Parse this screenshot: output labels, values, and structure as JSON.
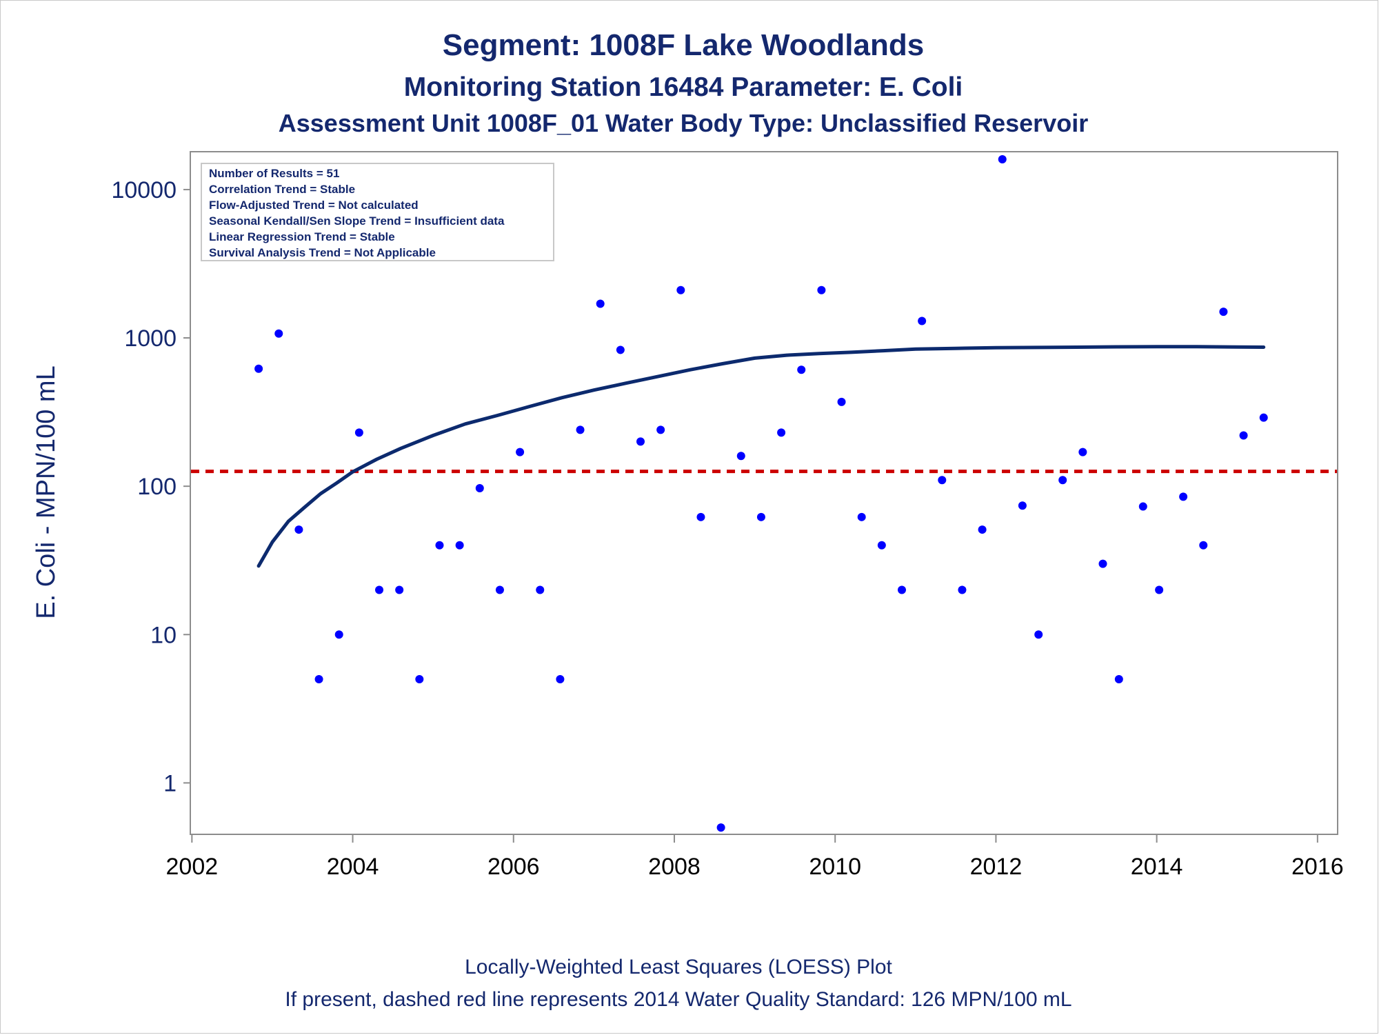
{
  "chart_data": {
    "type": "scatter",
    "title": "Segment: 1008F  Lake Woodlands",
    "subtitle": "Monitoring Station 16484 Parameter: E. Coli",
    "subtitle2": "Assessment Unit 1008F_01   Water Body Type: Unclassified Reservoir",
    "xlabel": "",
    "ylabel": "E. Coli - MPN/100 mL",
    "footnotes": [
      "Locally-Weighted Least Squares (LOESS) Plot",
      "If present, dashed red line represents 2014 Water Quality Standard: 126 MPN/100 mL"
    ],
    "stats_box": [
      "Number of Results = 51",
      "Correlation Trend = Stable",
      "Flow-Adjusted Trend = Not calculated",
      "Seasonal Kendall/Sen Slope Trend = Insufficient data",
      "Linear Regression Trend = Stable",
      "Survival Analysis Trend = Not Applicable"
    ],
    "x_ticks": [
      2002,
      2004,
      2006,
      2008,
      2010,
      2012,
      2014,
      2016
    ],
    "y_ticks": [
      1,
      10,
      100,
      1000,
      10000
    ],
    "y_tick_labels": [
      "1",
      "10",
      "100",
      "1000",
      "10000"
    ],
    "xlim": [
      2001.98,
      2016.25
    ],
    "ylim": [
      0.45,
      18000
    ],
    "y_scale": "log",
    "standard_line": 126,
    "grid": false,
    "colors": {
      "points": "#0000ff",
      "loess": "#0c2a6e",
      "standard": "#cc0000",
      "text": "#14286e"
    },
    "points": [
      [
        2002.83,
        620
      ],
      [
        2003.08,
        1070
      ],
      [
        2003.33,
        51
      ],
      [
        2003.58,
        5
      ],
      [
        2003.83,
        10
      ],
      [
        2004.08,
        230
      ],
      [
        2004.33,
        20
      ],
      [
        2004.58,
        20
      ],
      [
        2004.83,
        5
      ],
      [
        2005.08,
        40
      ],
      [
        2005.33,
        40
      ],
      [
        2005.58,
        97
      ],
      [
        2005.83,
        20
      ],
      [
        2006.08,
        170
      ],
      [
        2006.33,
        20
      ],
      [
        2006.58,
        5
      ],
      [
        2006.83,
        240
      ],
      [
        2007.08,
        1700
      ],
      [
        2007.33,
        830
      ],
      [
        2007.58,
        200
      ],
      [
        2007.83,
        240
      ],
      [
        2008.08,
        2100
      ],
      [
        2008.33,
        62
      ],
      [
        2008.58,
        0.5
      ],
      [
        2008.83,
        160
      ],
      [
        2009.08,
        62
      ],
      [
        2009.33,
        230
      ],
      [
        2009.58,
        610
      ],
      [
        2009.83,
        2100
      ],
      [
        2010.08,
        370
      ],
      [
        2010.33,
        62
      ],
      [
        2010.58,
        40
      ],
      [
        2010.83,
        20
      ],
      [
        2011.08,
        1300
      ],
      [
        2011.33,
        110
      ],
      [
        2011.58,
        20
      ],
      [
        2011.83,
        51
      ],
      [
        2012.08,
        16000
      ],
      [
        2012.33,
        74
      ],
      [
        2012.53,
        10
      ],
      [
        2012.83,
        110
      ],
      [
        2013.08,
        170
      ],
      [
        2013.33,
        30
      ],
      [
        2013.53,
        5
      ],
      [
        2013.83,
        73
      ],
      [
        2014.03,
        20
      ],
      [
        2014.33,
        85
      ],
      [
        2014.58,
        40
      ],
      [
        2014.83,
        1500
      ],
      [
        2015.08,
        220
      ],
      [
        2015.33,
        290
      ]
    ],
    "loess": [
      [
        2002.83,
        29
      ],
      [
        2003.0,
        42
      ],
      [
        2003.2,
        58
      ],
      [
        2003.4,
        72
      ],
      [
        2003.6,
        89
      ],
      [
        2003.8,
        105
      ],
      [
        2004.0,
        125
      ],
      [
        2004.3,
        152
      ],
      [
        2004.6,
        180
      ],
      [
        2005.0,
        220
      ],
      [
        2005.4,
        263
      ],
      [
        2005.8,
        300
      ],
      [
        2006.2,
        345
      ],
      [
        2006.6,
        395
      ],
      [
        2007.0,
        445
      ],
      [
        2007.4,
        495
      ],
      [
        2007.8,
        550
      ],
      [
        2008.2,
        610
      ],
      [
        2008.6,
        670
      ],
      [
        2009.0,
        730
      ],
      [
        2009.4,
        765
      ],
      [
        2009.8,
        785
      ],
      [
        2010.2,
        800
      ],
      [
        2010.6,
        820
      ],
      [
        2011.0,
        840
      ],
      [
        2011.5,
        850
      ],
      [
        2012.0,
        858
      ],
      [
        2012.5,
        862
      ],
      [
        2013.0,
        866
      ],
      [
        2013.5,
        870
      ],
      [
        2014.0,
        872
      ],
      [
        2014.5,
        872
      ],
      [
        2015.0,
        868
      ],
      [
        2015.33,
        866
      ]
    ]
  }
}
